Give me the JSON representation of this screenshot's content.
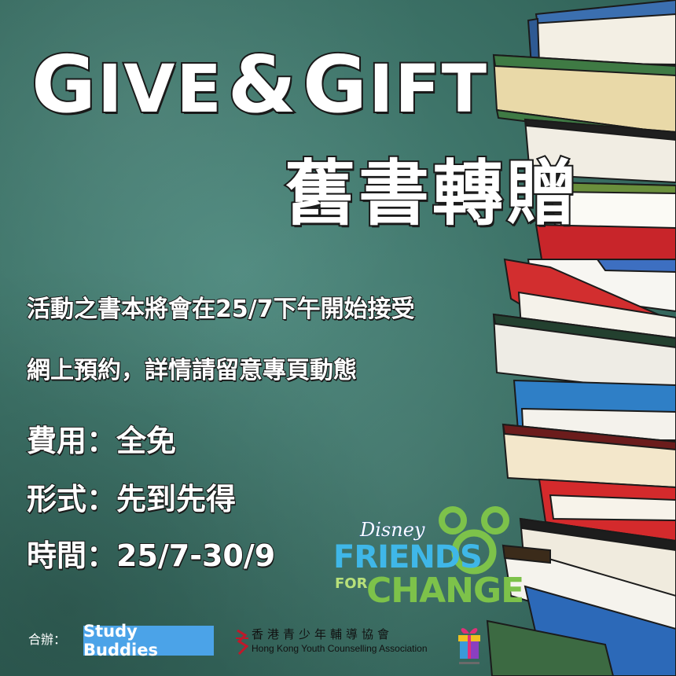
{
  "title": {
    "en_parts": [
      {
        "text": "G",
        "size": "big"
      },
      {
        "text": "IVE",
        "size": "small"
      },
      {
        "text": "&",
        "size": "big"
      },
      {
        "text": "G",
        "size": "big"
      },
      {
        "text": "IFT",
        "size": "small"
      }
    ],
    "en_full": "GIVE & GIFT",
    "zh": "舊書轉贈"
  },
  "description": [
    "活動之書本將會在25/7下午開始接受",
    "網上預約，詳情請留意專頁動態"
  ],
  "info": [
    "費用：全免",
    "形式：先到先得",
    "時間：25/7-30/9"
  ],
  "sponsor": {
    "disney": "Disney",
    "friends": "FRIENDS",
    "for": "FOR",
    "change": "CHANGE"
  },
  "footer": {
    "co_organizer_label": "合辦：",
    "study_buddies": "Study Buddies",
    "hkyca_zh": "香港青少年輔導協會",
    "hkyca_en": "Hong Kong Youth Counselling Association"
  },
  "colors": {
    "board": "#3d7368",
    "study_buddies_bg": "#4ba3e8",
    "friends_blue": "#3fb7e8",
    "change_green": "#7dc24a"
  }
}
